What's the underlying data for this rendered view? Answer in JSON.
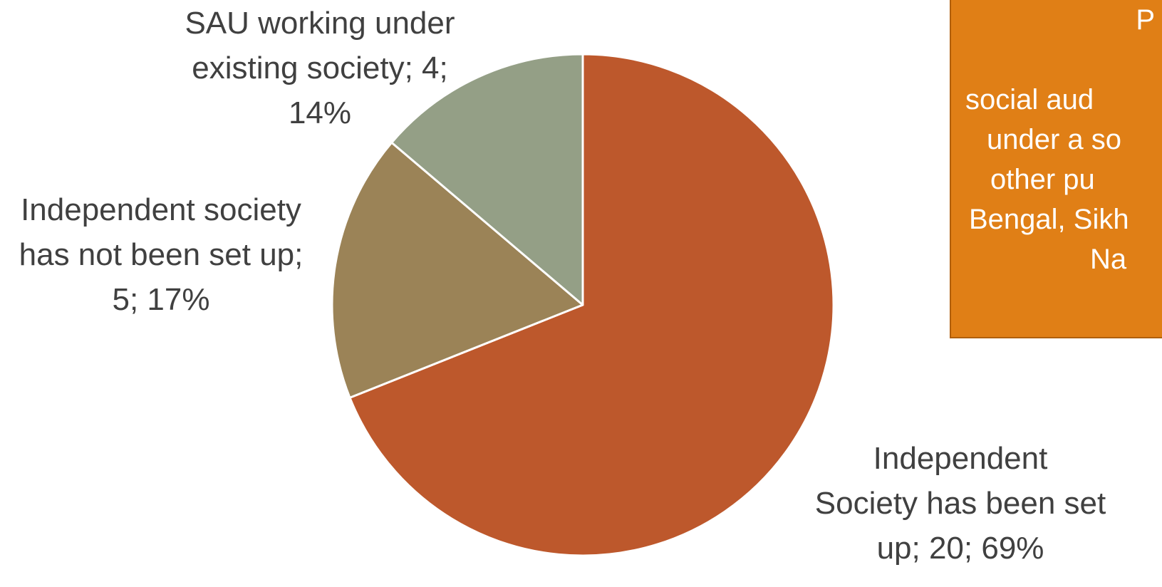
{
  "chart_data": {
    "type": "pie",
    "title": "",
    "slices": [
      {
        "name": "Independent Society has been set up",
        "value": 20,
        "percent": "69%",
        "color": "#bd582c",
        "label_lines": [
          "Independent",
          "Society has been set",
          "up; 20; 69%"
        ]
      },
      {
        "name": "Independent society has not been set up",
        "value": 5,
        "percent": "17%",
        "color": "#9b8357",
        "label_lines": [
          "Independent society",
          "has not been set up;",
          "5; 17%"
        ]
      },
      {
        "name": "SAU working under existing society",
        "value": 4,
        "percent": "14%",
        "color": "#949f86",
        "label_lines": [
          "SAU working under",
          "existing society; 4;",
          "14%"
        ]
      }
    ],
    "start_angle_deg": 0,
    "direction": "clockwise",
    "slice_border_color": "#ffffff",
    "label_color": "#404040"
  },
  "callout": {
    "color": "#e07f16",
    "text_color": "#ffffff",
    "lines": [
      "P",
      "",
      "social aud",
      "under a so",
      "other pu",
      "Bengal, Sikh",
      "Na"
    ]
  }
}
